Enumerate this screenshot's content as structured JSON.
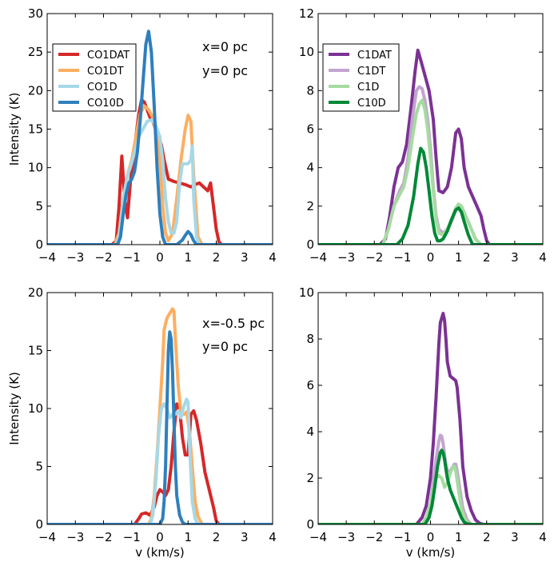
{
  "chart_data": [
    {
      "type": "line",
      "xlabel": "",
      "ylabel": "Intensity (K)",
      "xlim": [
        -4,
        4
      ],
      "ylim": [
        0,
        30
      ],
      "xticks": [
        -4,
        -3,
        -2,
        -1,
        0,
        1,
        2,
        3,
        4
      ],
      "yticks": [
        0,
        5,
        10,
        15,
        20,
        25,
        30
      ],
      "legend": "upper-left",
      "annotations": [
        "x=0 pc",
        "y=0 pc"
      ],
      "series": [
        {
          "name": "CO1DAT",
          "color": "#d62728",
          "x": [
            -4,
            -1.7,
            -1.55,
            -1.45,
            -1.35,
            -1.25,
            -1.15,
            -1.05,
            -0.95,
            -0.85,
            -0.75,
            -0.65,
            -0.55,
            -0.45,
            -0.35,
            -0.25,
            -0.15,
            -0.05,
            0.05,
            0.15,
            0.3,
            0.5,
            0.7,
            0.9,
            1.1,
            1.25,
            1.4,
            1.55,
            1.7,
            1.8,
            1.9,
            2.0,
            2.1,
            2.2,
            4
          ],
          "y": [
            0,
            0,
            0.5,
            5,
            11.5,
            6,
            3.5,
            8,
            11,
            14,
            17,
            18.8,
            18.5,
            17.5,
            16.5,
            16,
            15,
            14,
            13,
            11,
            8.5,
            8.2,
            8,
            7.8,
            7.5,
            7.8,
            8,
            7.5,
            7,
            8,
            5,
            2,
            0.3,
            0,
            0
          ]
        },
        {
          "name": "CO1DT",
          "color": "#fdae61",
          "x": [
            -4,
            -1.6,
            -1.45,
            -1.3,
            -1.15,
            -1.0,
            -0.85,
            -0.7,
            -0.55,
            -0.4,
            -0.25,
            -0.1,
            0,
            0.1,
            0.2,
            0.3,
            0.45,
            0.6,
            0.75,
            0.9,
            1.0,
            1.1,
            1.2,
            1.35,
            1.5,
            4
          ],
          "y": [
            0,
            0,
            1.5,
            6,
            9,
            11,
            14,
            17,
            18,
            17.5,
            16.5,
            14,
            11,
            5,
            1.5,
            0.5,
            1.5,
            6,
            11,
            15,
            16.8,
            16,
            9,
            1,
            0,
            0
          ]
        },
        {
          "name": "CO1D",
          "color": "#a6d8e7",
          "x": [
            -4,
            -1.55,
            -1.45,
            -1.35,
            -1.25,
            -1.15,
            -1.05,
            -0.9,
            -0.75,
            -0.6,
            -0.45,
            -0.3,
            -0.15,
            0,
            0.1,
            0.2,
            0.3,
            0.4,
            0.5,
            0.6,
            0.7,
            0.8,
            0.9,
            1.0,
            1.1,
            1.15,
            1.2,
            1.3,
            1.4,
            1.5,
            4
          ],
          "y": [
            0,
            0,
            1,
            4,
            7,
            9,
            10,
            12,
            14,
            15,
            16,
            16.2,
            15.5,
            14,
            11,
            6,
            3,
            1.5,
            1.5,
            3,
            8,
            10.5,
            10.5,
            10.5,
            11,
            12.8,
            6,
            1,
            0,
            0,
            0
          ]
        },
        {
          "name": "CO10D",
          "color": "#2f7fbd",
          "x": [
            -4,
            -1.5,
            -1.4,
            -1.3,
            -1.2,
            -1.1,
            -1.0,
            -0.9,
            -0.8,
            -0.7,
            -0.6,
            -0.5,
            -0.4,
            -0.3,
            -0.2,
            -0.1,
            0,
            0.1,
            0.2,
            0.4,
            0.6,
            0.8,
            0.9,
            1.0,
            1.1,
            1.2,
            1.3,
            1.4,
            4
          ],
          "y": [
            0,
            0,
            1,
            4,
            6.5,
            8,
            8.5,
            9.5,
            12,
            16,
            21,
            26,
            27.7,
            25,
            18,
            10,
            4,
            1,
            0,
            0,
            0,
            0.6,
            1.2,
            1.7,
            1.3,
            0.5,
            0,
            0,
            0
          ]
        }
      ]
    },
    {
      "type": "line",
      "xlabel": "",
      "ylabel": "",
      "xlim": [
        -4,
        4
      ],
      "ylim": [
        0,
        12
      ],
      "xticks": [
        -4,
        -3,
        -2,
        -1,
        0,
        1,
        2,
        3,
        4
      ],
      "yticks": [
        0,
        2,
        4,
        6,
        8,
        10,
        12
      ],
      "legend": "upper-left",
      "series": [
        {
          "name": "C1DAT",
          "color": "#7b3294",
          "x": [
            -4,
            -1.8,
            -1.6,
            -1.45,
            -1.3,
            -1.15,
            -1.0,
            -0.85,
            -0.7,
            -0.55,
            -0.45,
            -0.35,
            -0.2,
            -0.05,
            0.1,
            0.2,
            0.3,
            0.45,
            0.6,
            0.75,
            0.9,
            1.0,
            1.1,
            1.2,
            1.35,
            1.5,
            1.65,
            1.8,
            1.9,
            2.0,
            2.1,
            4
          ],
          "y": [
            0,
            0,
            0.3,
            1.5,
            3,
            4,
            4.3,
            5.2,
            7,
            9,
            10.1,
            9.6,
            8.8,
            8,
            6.5,
            4.5,
            2.8,
            2.7,
            3,
            4,
            5.8,
            6,
            5.5,
            4,
            3,
            2.5,
            2,
            1.5,
            0.8,
            0.2,
            0,
            0
          ]
        },
        {
          "name": "C1DT",
          "color": "#c2a5cf",
          "x": [
            -4,
            -1.7,
            -1.5,
            -1.3,
            -1.1,
            -0.95,
            -0.8,
            -0.65,
            -0.5,
            -0.4,
            -0.3,
            -0.2,
            -0.1,
            0,
            0.1,
            0.2,
            0.3,
            0.45,
            0.6,
            0.75,
            0.9,
            1.0,
            1.1,
            1.25,
            1.4,
            1.6,
            1.8,
            4
          ],
          "y": [
            0,
            0,
            0.8,
            2,
            2.8,
            3.2,
            4.5,
            6.5,
            8,
            8.2,
            8.1,
            7.5,
            6.5,
            5,
            3,
            1.5,
            0.8,
            0.6,
            0.8,
            1.2,
            1.8,
            2.1,
            2,
            1.5,
            1,
            0.3,
            0,
            0
          ]
        },
        {
          "name": "C1D",
          "color": "#a6dba0",
          "x": [
            -4,
            -1.7,
            -1.5,
            -1.3,
            -1.1,
            -0.95,
            -0.8,
            -0.65,
            -0.5,
            -0.4,
            -0.3,
            -0.2,
            -0.1,
            0,
            0.1,
            0.2,
            0.3,
            0.45,
            0.6,
            0.75,
            0.9,
            1.0,
            1.1,
            1.25,
            1.4,
            1.6,
            1.8,
            4
          ],
          "y": [
            0,
            0,
            0.8,
            2,
            2.6,
            3,
            4,
            5.5,
            6.8,
            7.3,
            7.5,
            7,
            6,
            4.5,
            2.8,
            1.3,
            0.6,
            0.5,
            0.8,
            1.3,
            1.9,
            2.1,
            2,
            1.5,
            1,
            0.3,
            0,
            0
          ]
        },
        {
          "name": "C10D",
          "color": "#008837",
          "x": [
            -4,
            -1.2,
            -1.0,
            -0.8,
            -0.6,
            -0.45,
            -0.35,
            -0.25,
            -0.15,
            -0.05,
            0.05,
            0.15,
            0.25,
            0.35,
            0.45,
            0.6,
            0.75,
            0.9,
            1.0,
            1.1,
            1.2,
            1.35,
            1.5,
            4
          ],
          "y": [
            0,
            0,
            0.3,
            1,
            2.5,
            4.2,
            5,
            4.8,
            4,
            2.8,
            1.5,
            0.6,
            0.2,
            0.2,
            0.3,
            0.7,
            1.3,
            1.8,
            1.9,
            1.7,
            1.2,
            0.5,
            0,
            0
          ]
        }
      ]
    },
    {
      "type": "line",
      "xlabel": "v (km/s)",
      "ylabel": "Intensity (K)",
      "xlim": [
        -4,
        4
      ],
      "ylim": [
        0,
        20
      ],
      "xticks": [
        -4,
        -3,
        -2,
        -1,
        0,
        1,
        2,
        3,
        4
      ],
      "yticks": [
        0,
        5,
        10,
        15,
        20
      ],
      "annotations": [
        "x=-0.5 pc",
        "y=0 pc"
      ],
      "series": [
        {
          "name": "CO1DAT",
          "color": "#d62728",
          "x": [
            -4,
            -0.9,
            -0.75,
            -0.65,
            -0.5,
            -0.35,
            -0.2,
            -0.1,
            0,
            0.1,
            0.2,
            0.3,
            0.4,
            0.5,
            0.6,
            0.7,
            0.8,
            0.9,
            1.0,
            1.1,
            1.2,
            1.3,
            1.45,
            1.6,
            1.75,
            1.9,
            2.0,
            2.1,
            4
          ],
          "y": [
            0,
            0,
            0.5,
            0.9,
            1,
            0.8,
            1.5,
            2.5,
            3,
            2.8,
            2.5,
            3,
            5,
            8,
            10.4,
            10,
            7.5,
            6,
            6,
            9.5,
            9.8,
            9,
            7,
            4.5,
            3,
            1.5,
            0.3,
            0,
            0
          ]
        },
        {
          "name": "CO1DT",
          "color": "#fdae61",
          "x": [
            -4,
            -0.4,
            -0.3,
            -0.2,
            -0.1,
            0,
            0.1,
            0.15,
            0.25,
            0.35,
            0.45,
            0.5,
            0.55,
            0.65,
            0.75,
            0.85,
            0.95,
            1.05,
            1.15,
            1.25,
            1.35,
            1.5,
            4
          ],
          "y": [
            0,
            0,
            0.5,
            2.5,
            6,
            10,
            14,
            16.8,
            17.8,
            18.2,
            18.6,
            18.4,
            16,
            12,
            9.5,
            9.5,
            9.7,
            8,
            5,
            2,
            0.7,
            0,
            0
          ]
        },
        {
          "name": "CO1D",
          "color": "#a6d8e7",
          "x": [
            -4,
            -0.35,
            -0.25,
            -0.15,
            -0.05,
            0.05,
            0.15,
            0.25,
            0.35,
            0.45,
            0.55,
            0.65,
            0.75,
            0.85,
            0.95,
            1.0,
            1.05,
            1.15,
            1.25,
            1.35,
            4
          ],
          "y": [
            0,
            0,
            0.8,
            3.5,
            7.5,
            10,
            10.4,
            10,
            9.2,
            9.5,
            9.5,
            9.8,
            9.2,
            10.2,
            10.8,
            10.5,
            7,
            2,
            0.5,
            0,
            0
          ]
        },
        {
          "name": "CO10D",
          "color": "#2f7fbd",
          "x": [
            -4,
            0,
            0.1,
            0.15,
            0.2,
            0.25,
            0.3,
            0.35,
            0.4,
            0.45,
            0.5,
            0.55,
            0.6,
            0.7,
            0.8,
            0.9,
            4
          ],
          "y": [
            0,
            0,
            0.5,
            2,
            5,
            10,
            15,
            16.6,
            16,
            13,
            9,
            5,
            2.5,
            0.8,
            0.2,
            0,
            0
          ]
        }
      ]
    },
    {
      "type": "line",
      "xlabel": "v (km/s)",
      "ylabel": "",
      "xlim": [
        -4,
        4
      ],
      "ylim": [
        0,
        10
      ],
      "xticks": [
        -4,
        -3,
        -2,
        -1,
        0,
        1,
        2,
        3,
        4
      ],
      "yticks": [
        0,
        2,
        4,
        6,
        8,
        10
      ],
      "series": [
        {
          "name": "C1DAT",
          "color": "#7b3294",
          "x": [
            -4,
            -0.5,
            -0.3,
            -0.15,
            0,
            0.1,
            0.2,
            0.3,
            0.35,
            0.45,
            0.5,
            0.55,
            0.6,
            0.7,
            0.8,
            0.9,
            0.95,
            1.05,
            1.15,
            1.3,
            1.45,
            1.6,
            1.75,
            1.9,
            4
          ],
          "y": [
            0,
            0,
            0.3,
            0.8,
            2,
            3.5,
            5.5,
            7.8,
            8.7,
            9.1,
            8.8,
            8,
            7,
            6.4,
            6.3,
            6.2,
            5.9,
            4.5,
            2.5,
            1.2,
            0.6,
            0.2,
            0.05,
            0,
            0
          ]
        },
        {
          "name": "C1DT",
          "color": "#c2a5cf",
          "x": [
            -4,
            -0.3,
            -0.15,
            0,
            0.1,
            0.2,
            0.3,
            0.35,
            0.4,
            0.45,
            0.5,
            0.55,
            0.6,
            0.7,
            0.8,
            0.85,
            0.9,
            0.95,
            1.05,
            1.15,
            1.3,
            1.45,
            4
          ],
          "y": [
            0,
            0,
            0.3,
            0.9,
            1.8,
            2.8,
            3.6,
            3.85,
            3.8,
            3.5,
            3,
            2.6,
            2.3,
            2.3,
            2.5,
            2.6,
            2.6,
            2.3,
            1.5,
            0.7,
            0.2,
            0,
            0
          ]
        },
        {
          "name": "C1D",
          "color": "#a6dba0",
          "x": [
            -4,
            -0.3,
            -0.15,
            0,
            0.1,
            0.2,
            0.3,
            0.4,
            0.5,
            0.6,
            0.7,
            0.8,
            0.85,
            0.9,
            1.0,
            1.1,
            1.2,
            1.3,
            1.45,
            4
          ],
          "y": [
            0,
            0,
            0.3,
            0.9,
            1.5,
            2,
            2.1,
            2,
            1.6,
            1.8,
            2.2,
            2.5,
            2.5,
            2.3,
            1.5,
            0.7,
            0.3,
            0.1,
            0,
            0
          ]
        },
        {
          "name": "C10D",
          "color": "#008837",
          "x": [
            -4,
            -0.2,
            -0.05,
            0.05,
            0.15,
            0.25,
            0.35,
            0.4,
            0.45,
            0.5,
            0.55,
            0.6,
            0.7,
            0.8,
            0.9,
            1.0,
            1.1,
            1.2,
            1.3,
            1.45,
            4
          ],
          "y": [
            0,
            0,
            0.3,
            0.8,
            1.6,
            2.5,
            3.1,
            3.2,
            3.1,
            2.8,
            2.4,
            2,
            1.5,
            1.2,
            0.9,
            0.6,
            0.3,
            0.1,
            0.03,
            0,
            0
          ]
        }
      ]
    }
  ]
}
